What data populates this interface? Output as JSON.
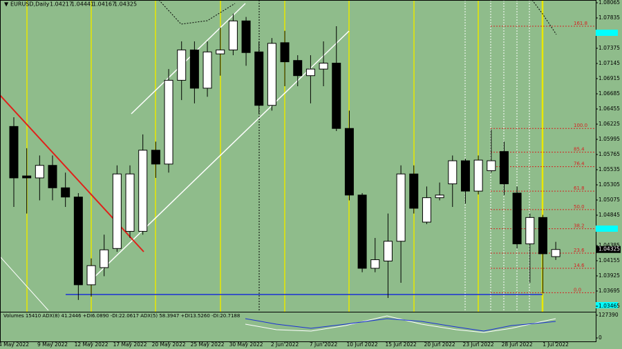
{
  "chart_data": {
    "type": "candlestick",
    "title": "EURUSD,Daily",
    "categories": [
      "4 May 2022",
      null,
      null,
      "9 May 2022",
      null,
      null,
      "12 May 2022",
      null,
      null,
      "17 May 2022",
      null,
      null,
      "20 May 2022",
      null,
      null,
      "25 May 2022",
      null,
      null,
      "30 May 2022",
      null,
      null,
      "2 Jun 2022",
      null,
      null,
      "7 Jun 2022",
      null,
      null,
      "10 Jun 2022",
      null,
      null,
      "15 Jun 2022",
      null,
      null,
      "20 Jun 2022",
      null,
      null,
      "23 Jun 2022",
      null,
      null,
      "28 Jun 2022",
      null,
      null,
      "1 Jul 2022"
    ],
    "open": [
      1.0619,
      1.0544,
      1.0541,
      1.056,
      1.0526,
      1.0512,
      1.0379,
      1.0405,
      1.0434,
      1.046,
      1.046,
      1.0583,
      1.0562,
      1.0689,
      1.0735,
      1.0677,
      1.0729,
      1.0735,
      1.0779,
      1.0732,
      1.0651,
      1.0746,
      1.0719,
      1.0696,
      1.0706,
      1.0715,
      1.0616,
      1.0515,
      1.0404,
      1.0415,
      1.0445,
      1.0547,
      1.0474,
      1.0511,
      1.0532,
      1.0567,
      1.0521,
      1.0552,
      1.0581,
      1.0518,
      1.0441,
      1.0481,
      1.04217
    ],
    "high": [
      1.0633,
      1.0586,
      1.0575,
      1.0575,
      1.0549,
      1.0518,
      1.0419,
      1.0455,
      1.056,
      1.056,
      1.0607,
      1.0596,
      1.0706,
      1.0748,
      1.0748,
      1.0748,
      1.0769,
      1.079,
      1.0785,
      1.0748,
      1.0753,
      1.0764,
      1.0727,
      1.0727,
      1.0748,
      1.0771,
      1.0643,
      1.0518,
      1.045,
      1.0487,
      1.056,
      1.056,
      1.0528,
      1.0534,
      1.0575,
      1.057,
      1.0575,
      1.0614,
      1.0596,
      1.0528,
      1.0487,
      1.0485,
      1.04441
    ],
    "low": [
      1.0497,
      1.0487,
      1.0507,
      1.0507,
      1.0497,
      1.0356,
      1.0361,
      1.0392,
      1.0429,
      1.045,
      1.0455,
      1.0541,
      1.0549,
      1.0659,
      1.0654,
      1.0664,
      1.0696,
      1.0727,
      1.0711,
      1.0638,
      1.0643,
      1.068,
      1.068,
      1.0654,
      1.068,
      1.0612,
      1.0507,
      1.0398,
      1.0398,
      1.0359,
      1.0382,
      1.0487,
      1.0471,
      1.0507,
      1.0497,
      1.0502,
      1.0516,
      1.0549,
      1.0515,
      1.0434,
      1.0382,
      1.0366,
      1.04167
    ],
    "close": [
      1.0541,
      1.0541,
      1.056,
      1.0526,
      1.0512,
      1.0379,
      1.0408,
      1.0432,
      1.0547,
      1.0547,
      1.0583,
      1.0562,
      1.0689,
      1.0735,
      1.0677,
      1.0732,
      1.0735,
      1.0779,
      1.0731,
      1.0651,
      1.0745,
      1.0717,
      1.0696,
      1.0706,
      1.0715,
      1.0616,
      1.0515,
      1.0404,
      1.0417,
      1.0445,
      1.0547,
      1.0495,
      1.0511,
      1.0515,
      1.0567,
      1.0521,
      1.0568,
      1.0567,
      1.0532,
      1.0441,
      1.0481,
      1.0426,
      1.04325
    ],
    "up_color": "#ffffff",
    "down_color": "#000000",
    "ylim": [
      1.03381,
      1.08107
    ],
    "yticks": [
      1.08065,
      1.07835,
      1.07375,
      1.07145,
      1.06915,
      1.06685,
      1.06455,
      1.06225,
      1.05995,
      1.05765,
      1.05535,
      1.05305,
      1.05075,
      1.04845,
      1.04385,
      1.04155,
      1.03925,
      1.03695,
      1.03465
    ],
    "fib_levels": [
      {
        "label": "161.8",
        "price": 1.0771
      },
      {
        "label": "100.0",
        "price": 1.0616
      },
      {
        "label": "85.4",
        "price": 1.058
      },
      {
        "label": "76.4",
        "price": 1.0558
      },
      {
        "label": "61.8",
        "price": 1.0521
      },
      {
        "label": "50.0",
        "price": 1.0493
      },
      {
        "label": "38.2",
        "price": 1.0464
      },
      {
        "label": "23.6",
        "price": 1.0427
      },
      {
        "label": "14.6",
        "price": 1.0404
      },
      {
        "label": "0.0",
        "price": 1.0367
      }
    ],
    "fib_color": "#d62020",
    "indicator_label": "Volumes 15410  ADX(8) 41.2446 +DI6.0890 -DI:22.0617  ADX(5) 58.3947 +DI13.5260 -DI:20.7188",
    "volume_ylim": [
      0,
      127390
    ],
    "volume_yticks": [
      0,
      127390
    ]
  }
}
